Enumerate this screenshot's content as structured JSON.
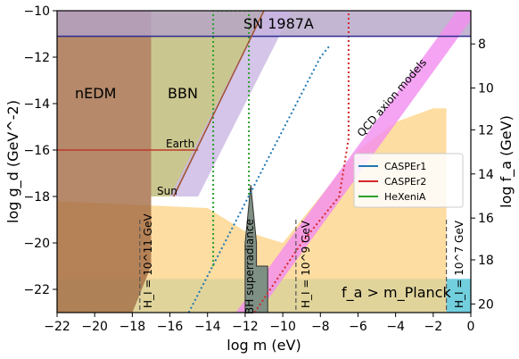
{
  "chart_data": {
    "type": "area",
    "title": "",
    "xlabel": "log m (eV)",
    "ylabel_left": "log g_d (GeV^-2)",
    "ylabel_right": "log f_a (GeV)",
    "xlim": [
      -22,
      0
    ],
    "ylim": [
      -23,
      -10
    ],
    "x_ticks": [
      -22,
      -20,
      -18,
      -16,
      -14,
      -12,
      -10,
      -8,
      -6,
      -4,
      -2,
      0
    ],
    "y_ticks": [
      -22,
      -20,
      -18,
      -16,
      -14,
      -12,
      -10
    ],
    "right_ticks": [
      20,
      18,
      16,
      14,
      12,
      10,
      8
    ],
    "right_tick_positions_gd": [
      -22.63,
      -20.73,
      -18.93,
      -17.03,
      -15.13,
      -13.33,
      -11.43
    ],
    "grid": false,
    "legend": {
      "placement": "right",
      "entries": [
        {
          "name": "CASPEr1",
          "color": "#1f77b4"
        },
        {
          "name": "CASPEr2",
          "color": "#d62728"
        },
        {
          "name": "HeXeniA",
          "color": "#2ca02c"
        }
      ]
    },
    "labels": {
      "sn": "SN 1987A",
      "nedm": "nEDM",
      "bbn": "BBN",
      "earth": "Earth",
      "sun": "Sun",
      "qcd": "QCD axion models",
      "bh": "BH superradiance",
      "hi11": "H_I = 10^11 GeV",
      "hi9": "H_I = 10^9 GeV",
      "hi7": "H_I = 10^7 GeV",
      "planck": "f_a > m_Planck"
    },
    "regions": [
      {
        "name": "Planck",
        "color": "#4fc3d6",
        "points": [
          [
            -22,
            -21.55
          ],
          [
            0,
            -21.55
          ],
          [
            0,
            -23
          ],
          [
            -22,
            -23
          ]
        ]
      },
      {
        "name": "Inflation band",
        "color": "#fdd58a",
        "points": [
          [
            -22,
            -23
          ],
          [
            -22,
            -18.2
          ],
          [
            -14,
            -18.5
          ],
          [
            -12,
            -19.5
          ],
          [
            -10,
            -20
          ],
          [
            -8,
            -18
          ],
          [
            -6,
            -16
          ],
          [
            -4,
            -14.8
          ],
          [
            -2,
            -14.2
          ],
          [
            -1.3,
            -14.2
          ],
          [
            -1.3,
            -23
          ]
        ]
      },
      {
        "name": "nEDM",
        "color": "#a26b45",
        "points": [
          [
            -22,
            -10
          ],
          [
            -17,
            -10
          ],
          [
            -17,
            -21
          ],
          [
            -18,
            -23
          ],
          [
            -22,
            -23
          ]
        ]
      },
      {
        "name": "BBN",
        "color": "#bdb873",
        "points": [
          [
            -17,
            -10
          ],
          [
            -11,
            -10
          ],
          [
            -15.8,
            -18
          ],
          [
            -17,
            -18
          ]
        ]
      },
      {
        "name": "SN 1987A",
        "color": "#b4a4c8",
        "points": [
          [
            -22,
            -10
          ],
          [
            0,
            -10
          ],
          [
            0,
            -11.1
          ],
          [
            -22,
            -11.1
          ]
        ]
      },
      {
        "name": "Purple wedge",
        "color": "#c9b6e3",
        "points": [
          [
            -16,
            -18
          ],
          [
            -11,
            -10
          ],
          [
            -9.5,
            -10
          ],
          [
            -14.5,
            -18
          ]
        ]
      },
      {
        "name": "QCD axion band",
        "color": "#f38df0",
        "points": [
          [
            -12.5,
            -23
          ],
          [
            -11.3,
            -23
          ],
          [
            0,
            -10.4
          ],
          [
            0,
            -9.2
          ]
        ]
      }
    ],
    "constraint_lines": [
      {
        "name": "CASPEr1",
        "color": "#1f77b4",
        "points": [
          [
            -15,
            -23
          ],
          [
            -8,
            -12
          ],
          [
            -7.5,
            -11.5
          ]
        ]
      },
      {
        "name": "CASPEr2",
        "color": "#d62728",
        "points": [
          [
            -11.5,
            -23
          ],
          [
            -9,
            -20
          ],
          [
            -7,
            -18
          ],
          [
            -6.5,
            -15.5
          ],
          [
            -6.5,
            -10
          ]
        ]
      },
      {
        "name": "HeXeniA",
        "color": "#2ca02c",
        "points": [
          [
            -13.7,
            -21
          ],
          [
            -13.7,
            -10
          ],
          [
            -11.8,
            -10
          ],
          [
            -11.8,
            -18
          ]
        ]
      },
      {
        "name": "nEDM boundary",
        "color": "#c0392b",
        "points": [
          [
            -22,
            -16
          ],
          [
            -14.5,
            -16
          ]
        ]
      },
      {
        "name": "SN boundary",
        "color": "#2b2b8f",
        "points": [
          [
            -22,
            -11.1
          ],
          [
            0,
            -11.1
          ]
        ]
      },
      {
        "name": "Earth/Sun boundary",
        "color": "#a0522d",
        "points": [
          [
            -15.8,
            -18
          ],
          [
            -11,
            -10
          ]
        ]
      }
    ],
    "bh_region": {
      "color": "#7e8f84",
      "points": [
        [
          -12,
          -23
        ],
        [
          -12,
          -20
        ],
        [
          -11.7,
          -17.5
        ],
        [
          -11.4,
          -20
        ],
        [
          -11.4,
          -21
        ],
        [
          -10.8,
          -21
        ],
        [
          -10.8,
          -23
        ]
      ]
    },
    "hi_lines": [
      -17.6,
      -9.3,
      -1.3
    ]
  }
}
